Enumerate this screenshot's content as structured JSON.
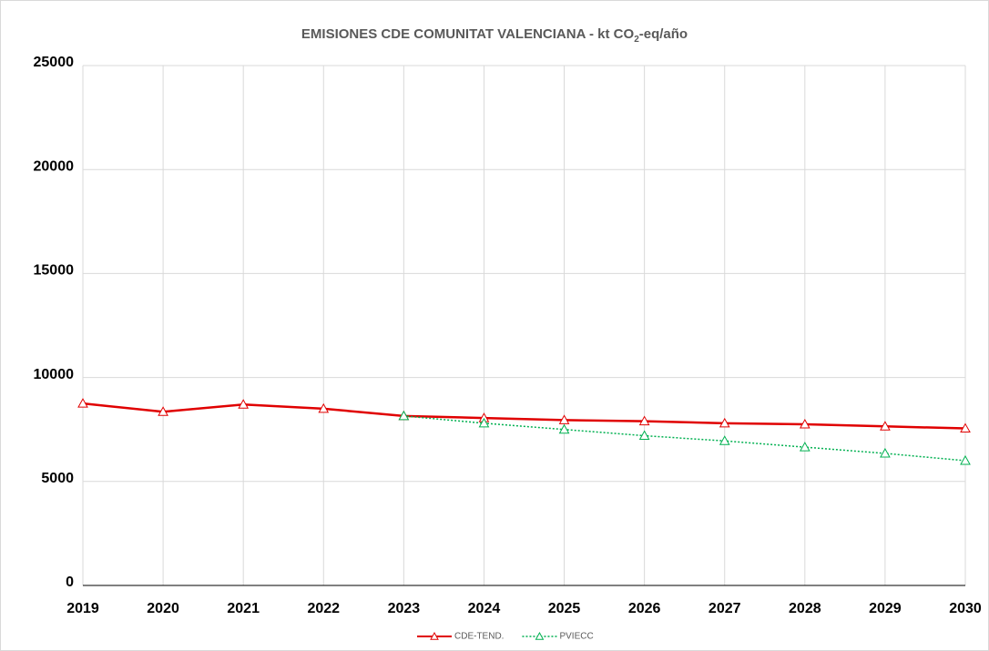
{
  "chart_data": {
    "type": "line",
    "title": [
      "EMISIONES CDE COMUNITAT VALENCIANA - kt CO",
      "2",
      "-eq/año"
    ],
    "x": [
      2019,
      2020,
      2021,
      2022,
      2023,
      2024,
      2025,
      2026,
      2027,
      2028,
      2029,
      2030
    ],
    "xlim": [
      2019,
      2030
    ],
    "xticks": [
      2019,
      2020,
      2021,
      2022,
      2023,
      2024,
      2025,
      2026,
      2027,
      2028,
      2029,
      2030
    ],
    "ylim": [
      0,
      25000
    ],
    "yticks": [
      0,
      5000,
      10000,
      15000,
      20000,
      25000
    ],
    "grid": true,
    "legend": "bottom",
    "series": [
      {
        "name": "CDE-TEND.",
        "color": "#e00000",
        "style": "solid",
        "values": [
          8750,
          8350,
          8700,
          8500,
          8150,
          8050,
          7950,
          7900,
          7800,
          7750,
          7650,
          7550
        ]
      },
      {
        "name": "PVIECC",
        "color": "#00b050",
        "style": "dotted",
        "values": [
          null,
          null,
          null,
          null,
          8150,
          7800,
          7500,
          7200,
          6950,
          6650,
          6350,
          6000
        ]
      }
    ]
  }
}
